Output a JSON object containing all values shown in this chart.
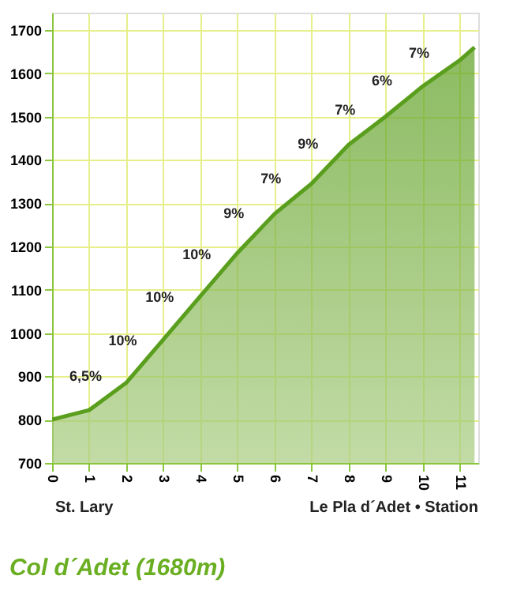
{
  "chart_data": {
    "type": "area",
    "title": "Col d´Adet (1680m)",
    "x": [
      0,
      1,
      2,
      3,
      4,
      5,
      6,
      7,
      8,
      9,
      10,
      11,
      11.4
    ],
    "series": [
      {
        "color": "#5a9e1e",
        "values": [
          800,
          822,
          885,
          985,
          1085,
          1185,
          1275,
          1345,
          1435,
          1500,
          1570,
          1630,
          1660
        ]
      }
    ],
    "xlim": [
      0,
      11.5
    ],
    "xticks": [
      0,
      1,
      2,
      3,
      4,
      5,
      6,
      7,
      8,
      9,
      10,
      11
    ],
    "ylim": [
      700,
      1740
    ],
    "yticks": [
      700,
      800,
      900,
      1000,
      1100,
      1200,
      1300,
      1400,
      1500,
      1600,
      1700
    ],
    "grid": true,
    "annotations": [
      {
        "text": "6,5%",
        "x": 1.5,
        "y": 853.5
      },
      {
        "text": "10%",
        "x": 2.5,
        "y": 935
      },
      {
        "text": "10%",
        "x": 3.5,
        "y": 1035
      },
      {
        "text": "10%",
        "x": 4.5,
        "y": 1135
      },
      {
        "text": "9%",
        "x": 5.5,
        "y": 1230
      },
      {
        "text": "7%",
        "x": 6.5,
        "y": 1310
      },
      {
        "text": "9%",
        "x": 7.5,
        "y": 1390
      },
      {
        "text": "7%",
        "x": 8.5,
        "y": 1467.5
      },
      {
        "text": "6%",
        "x": 9.5,
        "y": 1535
      },
      {
        "text": "7%",
        "x": 10.5,
        "y": 1600
      },
      "St. Lary",
      "Le Pla d´Adet • Station"
    ]
  }
}
